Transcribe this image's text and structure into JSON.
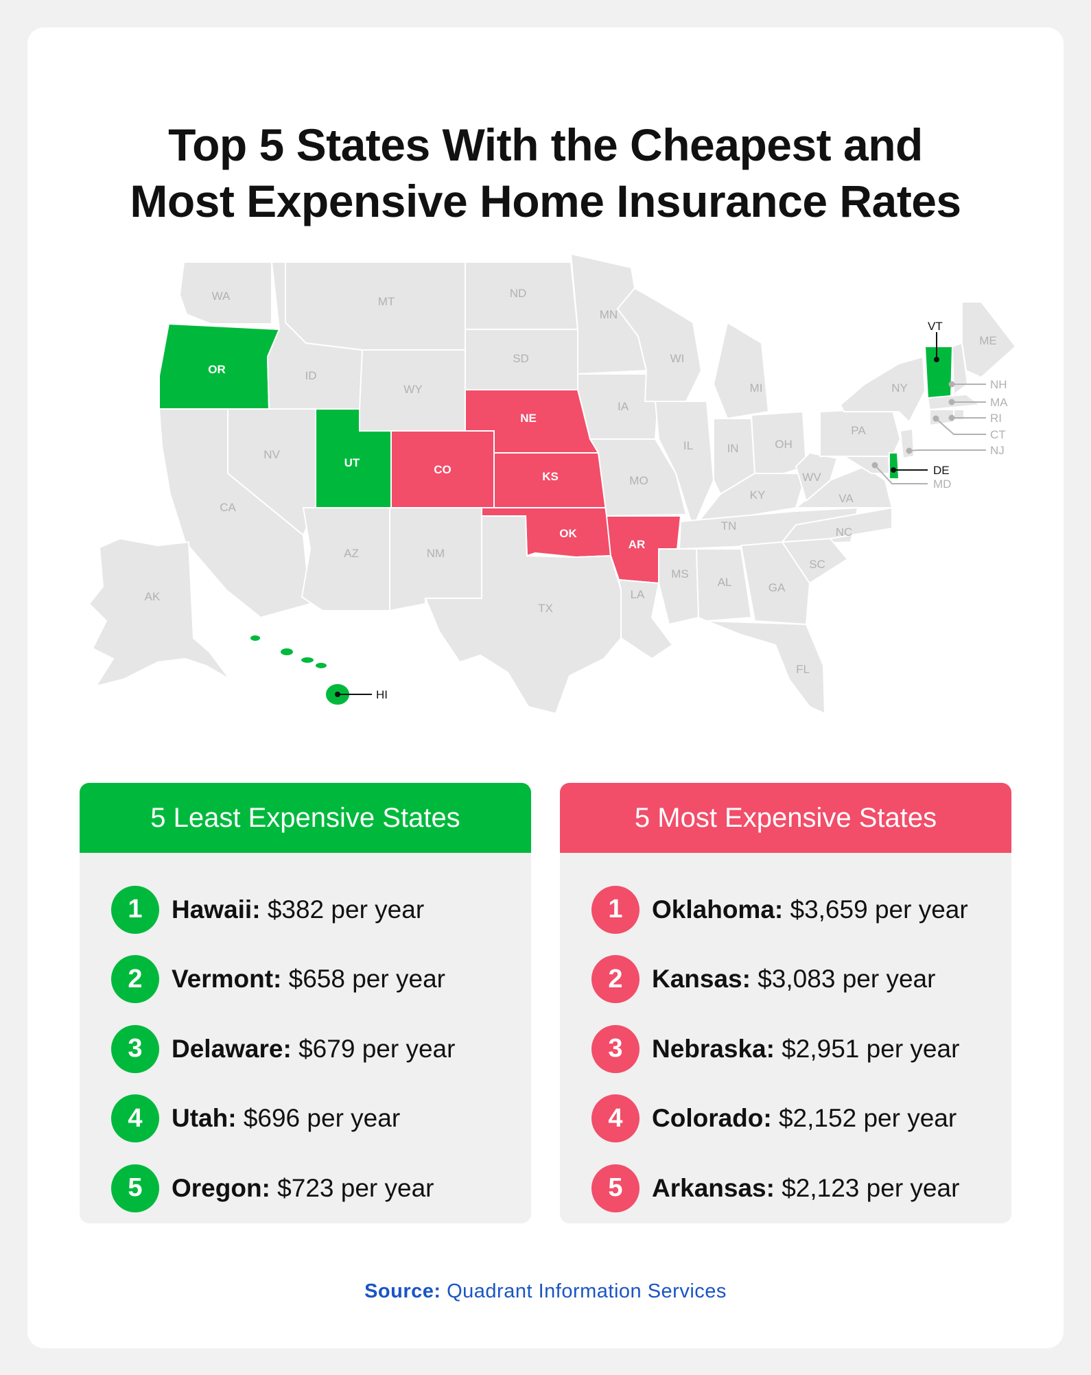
{
  "title": {
    "line1": "Top 5 States With the Cheapest and",
    "line2": "Most Expensive Home Insurance Rates"
  },
  "colors": {
    "cheap": "#00b93c",
    "expensive": "#f24d69",
    "neutral_state": "#e6e6e6",
    "label_gray": "#b1b1b1",
    "source_blue": "#1a55c5"
  },
  "map": {
    "highlight_cheap": [
      "OR",
      "UT",
      "VT",
      "DE",
      "HI"
    ],
    "highlight_expensive": [
      "NE",
      "CO",
      "KS",
      "OK",
      "AR"
    ],
    "labels": {
      "WA": "WA",
      "OR": "OR",
      "ID": "ID",
      "MT": "MT",
      "WY": "WY",
      "NV": "NV",
      "UT": "UT",
      "CA": "CA",
      "AZ": "AZ",
      "NM": "NM",
      "CO": "CO",
      "ND": "ND",
      "SD": "SD",
      "NE": "NE",
      "KS": "KS",
      "OK": "OK",
      "TX": "TX",
      "MN": "MN",
      "IA": "IA",
      "MO": "MO",
      "AR": "AR",
      "LA": "LA",
      "WI": "WI",
      "IL": "IL",
      "MI": "MI",
      "IN": "IN",
      "OH": "OH",
      "KY": "KY",
      "TN": "TN",
      "MS": "MS",
      "AL": "AL",
      "GA": "GA",
      "FL": "FL",
      "SC": "SC",
      "NC": "NC",
      "VA": "VA",
      "WV": "WV",
      "PA": "PA",
      "NY": "NY",
      "VT": "VT",
      "ME": "ME",
      "NH": "NH",
      "MA": "MA",
      "RI": "RI",
      "CT": "CT",
      "NJ": "NJ",
      "DE": "DE",
      "MD": "MD",
      "AK": "AK",
      "HI": "HI"
    }
  },
  "least": {
    "heading": "5 Least Expensive States",
    "items": [
      {
        "rank": "1",
        "state": "Hawaii:",
        "amount": "$382",
        "unit": "per year"
      },
      {
        "rank": "2",
        "state": "Vermont:",
        "amount": "$658",
        "unit": "per year"
      },
      {
        "rank": "3",
        "state": "Delaware:",
        "amount": "$679",
        "unit": "per year"
      },
      {
        "rank": "4",
        "state": "Utah:",
        "amount": "$696",
        "unit": "per year"
      },
      {
        "rank": "5",
        "state": "Oregon:",
        "amount": "$723",
        "unit": "per year"
      }
    ]
  },
  "most": {
    "heading": "5 Most Expensive States",
    "items": [
      {
        "rank": "1",
        "state": "Oklahoma:",
        "amount": "$3,659",
        "unit": "per year"
      },
      {
        "rank": "2",
        "state": "Kansas:",
        "amount": "$3,083",
        "unit": "per year"
      },
      {
        "rank": "3",
        "state": "Nebraska:",
        "amount": "$2,951",
        "unit": "per year"
      },
      {
        "rank": "4",
        "state": "Colorado:",
        "amount": "$2,152",
        "unit": "per year"
      },
      {
        "rank": "5",
        "state": "Arkansas:",
        "amount": "$2,123",
        "unit": "per year"
      }
    ]
  },
  "source": {
    "label": "Source:",
    "text": "Quadrant Information Services"
  }
}
